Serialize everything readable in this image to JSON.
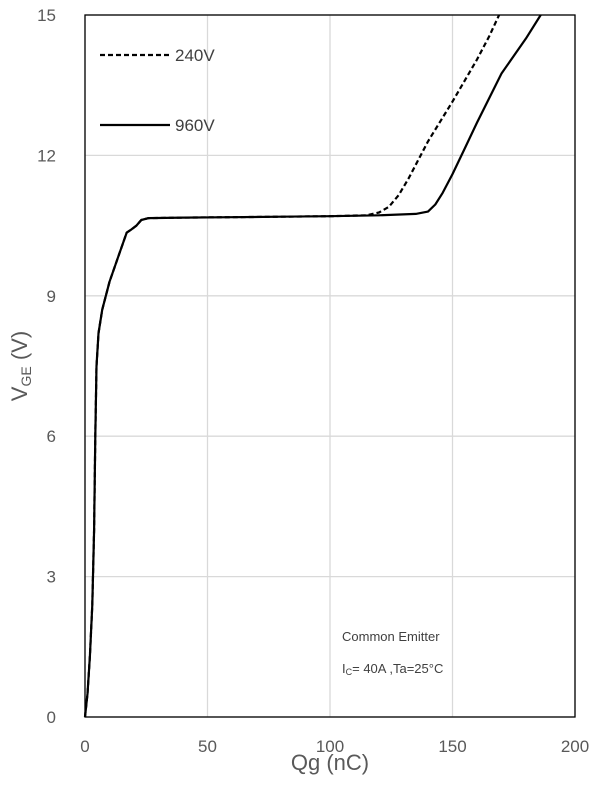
{
  "chart_data": {
    "type": "line",
    "title": "",
    "xlabel": "Qg (nC)",
    "ylabel_main": "V",
    "ylabel_sub": "GE",
    "ylabel_unit": " (V)",
    "xlim": [
      0,
      200
    ],
    "ylim": [
      0,
      15
    ],
    "xticks": [
      0,
      50,
      100,
      150,
      200
    ],
    "yticks": [
      0,
      3,
      6,
      9,
      12,
      15
    ],
    "grid": true,
    "legend_position": "top-left",
    "series": [
      {
        "name": "240V",
        "style": "dashed",
        "color": "#000000",
        "points": [
          [
            0,
            0
          ],
          [
            1,
            0.5
          ],
          [
            2,
            1.3
          ],
          [
            3,
            2.4
          ],
          [
            3.7,
            4
          ],
          [
            4.2,
            6
          ],
          [
            4.7,
            7.5
          ],
          [
            5.5,
            8.2
          ],
          [
            7,
            8.7
          ],
          [
            10,
            9.3
          ],
          [
            14,
            9.9
          ],
          [
            17,
            10.35
          ],
          [
            19,
            10.42
          ],
          [
            21,
            10.5
          ],
          [
            23,
            10.62
          ],
          [
            26,
            10.66
          ],
          [
            40,
            10.67
          ],
          [
            60,
            10.68
          ],
          [
            80,
            10.69
          ],
          [
            100,
            10.7
          ],
          [
            115,
            10.72
          ],
          [
            120,
            10.78
          ],
          [
            124,
            10.9
          ],
          [
            128,
            11.15
          ],
          [
            132,
            11.5
          ],
          [
            136,
            11.9
          ],
          [
            140,
            12.3
          ],
          [
            150,
            13.15
          ],
          [
            160,
            14.05
          ],
          [
            165,
            14.55
          ],
          [
            169,
            15.0
          ]
        ]
      },
      {
        "name": "960V",
        "style": "solid",
        "color": "#000000",
        "points": [
          [
            0,
            0
          ],
          [
            1,
            0.5
          ],
          [
            2,
            1.3
          ],
          [
            3,
            2.4
          ],
          [
            3.7,
            4
          ],
          [
            4.2,
            6
          ],
          [
            4.7,
            7.5
          ],
          [
            5.5,
            8.2
          ],
          [
            7,
            8.7
          ],
          [
            10,
            9.3
          ],
          [
            14,
            9.9
          ],
          [
            17,
            10.35
          ],
          [
            19,
            10.42
          ],
          [
            21,
            10.5
          ],
          [
            23,
            10.62
          ],
          [
            26,
            10.66
          ],
          [
            40,
            10.67
          ],
          [
            60,
            10.68
          ],
          [
            80,
            10.69
          ],
          [
            100,
            10.7
          ],
          [
            120,
            10.72
          ],
          [
            135,
            10.75
          ],
          [
            140,
            10.8
          ],
          [
            143,
            10.95
          ],
          [
            146,
            11.2
          ],
          [
            150,
            11.6
          ],
          [
            155,
            12.15
          ],
          [
            160,
            12.7
          ],
          [
            170,
            13.75
          ],
          [
            180,
            14.5
          ],
          [
            186,
            15.0
          ]
        ]
      }
    ],
    "annotation": {
      "line1": "Common Emitter",
      "line2_main": "I",
      "line2_sub": "C",
      "line2_rest": "= 40A ,Ta=25°C"
    }
  }
}
